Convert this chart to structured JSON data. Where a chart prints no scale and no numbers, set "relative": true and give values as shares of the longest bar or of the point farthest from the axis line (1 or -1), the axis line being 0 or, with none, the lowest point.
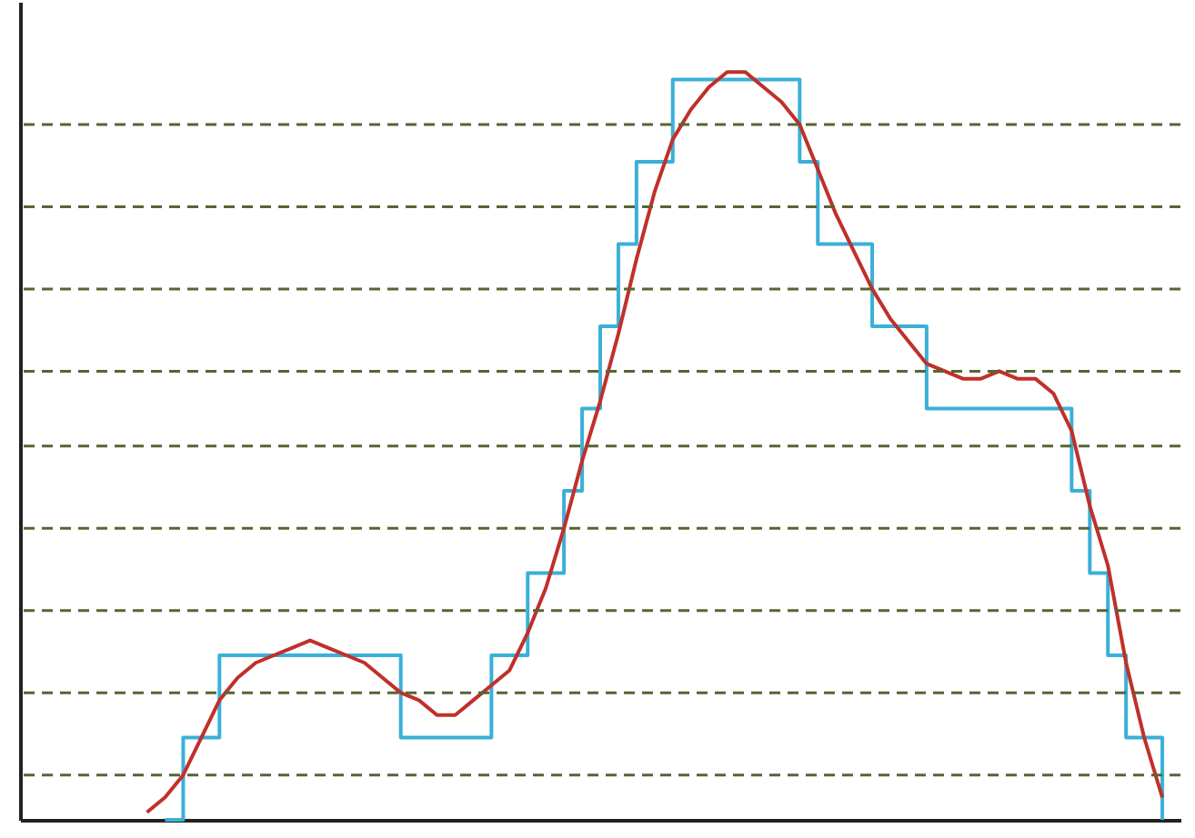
{
  "chart_data": {
    "type": "line",
    "relative": true,
    "tick_labels": false,
    "categories": [
      null,
      null,
      null,
      null,
      null,
      null,
      null,
      null,
      null,
      null,
      null,
      null,
      null,
      null,
      null,
      null,
      null,
      null,
      null,
      null,
      null,
      null,
      null,
      null,
      null,
      null,
      null,
      null,
      null,
      null,
      null,
      null,
      null,
      null,
      null,
      null,
      null,
      null,
      null,
      null,
      null,
      null,
      null,
      null,
      null,
      null,
      null,
      null,
      null,
      null,
      null,
      null,
      null,
      null,
      null,
      null,
      null,
      null,
      null,
      null,
      null,
      null,
      null,
      null,
      null
    ],
    "series": [
      {
        "type": "step",
        "color": "#3ab0d8",
        "values": [
          null,
          null,
          null,
          null,
          null,
          null,
          null,
          null,
          0,
          0.11,
          0.11,
          0.22,
          0.22,
          0.22,
          0.22,
          0.22,
          0.22,
          0.22,
          0.22,
          0.22,
          0.22,
          0.11,
          0.11,
          0.11,
          0.11,
          0.11,
          0.22,
          0.22,
          0.33,
          0.33,
          0.44,
          0.55,
          0.66,
          0.77,
          0.88,
          0.88,
          0.99,
          0.99,
          0.99,
          0.99,
          0.99,
          0.99,
          0.99,
          0.88,
          0.77,
          0.77,
          0.77,
          0.66,
          0.66,
          0.66,
          0.55,
          0.55,
          0.55,
          0.55,
          0.55,
          0.55,
          0.55,
          0.55,
          0.44,
          0.33,
          0.22,
          0.11,
          0.11,
          0,
          null
        ]
      },
      {
        "color": "#c0302a",
        "values": [
          null,
          null,
          null,
          null,
          null,
          null,
          null,
          0.01,
          0.03,
          0.06,
          0.11,
          0.16,
          0.19,
          0.21,
          0.22,
          0.23,
          0.24,
          0.23,
          0.22,
          0.21,
          0.19,
          0.17,
          0.16,
          0.14,
          0.14,
          0.16,
          0.18,
          0.2,
          0.25,
          0.31,
          0.39,
          0.48,
          0.56,
          0.65,
          0.75,
          0.84,
          0.91,
          0.95,
          0.98,
          1,
          1,
          0.98,
          0.96,
          0.93,
          0.87,
          0.81,
          0.76,
          0.71,
          0.67,
          0.64,
          0.61,
          0.6,
          0.59,
          0.59,
          0.6,
          0.59,
          0.59,
          0.57,
          0.52,
          0.42,
          0.34,
          0.21,
          0.11,
          0.03,
          null
        ]
      }
    ],
    "ref_lines": [
      {
        "axis": "y",
        "value": 0.06,
        "color": "#556633",
        "line_style": "dashed"
      },
      {
        "axis": "y",
        "value": 0.17,
        "color": "#556633",
        "line_style": "dashed"
      },
      {
        "axis": "y",
        "value": 0.28,
        "color": "#556633",
        "line_style": "dashed"
      },
      {
        "axis": "y",
        "value": 0.39,
        "color": "#556633",
        "line_style": "dashed"
      },
      {
        "axis": "y",
        "value": 0.5,
        "color": "#556633",
        "line_style": "dashed"
      },
      {
        "axis": "y",
        "value": 0.6,
        "color": "#556633",
        "line_style": "dashed"
      },
      {
        "axis": "y",
        "value": 0.71,
        "color": "#556633",
        "line_style": "dashed"
      },
      {
        "axis": "y",
        "value": 0.82,
        "color": "#556633",
        "line_style": "dashed"
      },
      {
        "axis": "y",
        "value": 0.93,
        "color": "#556633",
        "line_style": "dashed"
      }
    ]
  }
}
